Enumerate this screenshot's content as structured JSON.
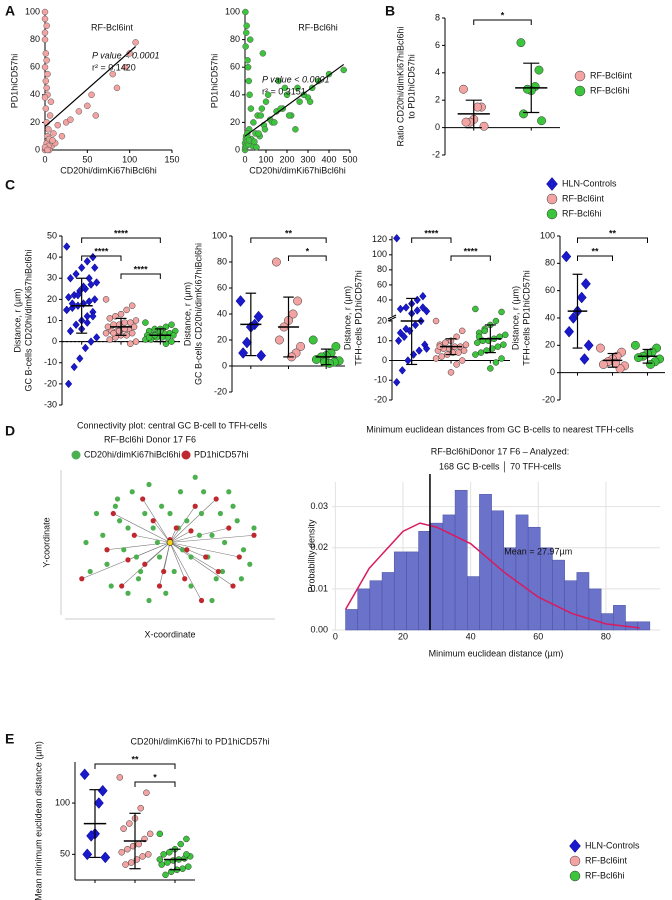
{
  "panels": [
    "A",
    "B",
    "C",
    "D",
    "E"
  ],
  "chart_data": [
    {
      "type": "scatter",
      "title": "RF-Bcl6int",
      "annotations": [
        "P value < 0.0001",
        "r² = 0.1420"
      ],
      "xlabel": "CD20hi/dimKi67hiBcl6hi",
      "ylabel": "PD1hiCD57hi",
      "xlim": [
        0,
        150
      ],
      "xticks": [
        0,
        50,
        100,
        150
      ],
      "ylim": [
        0,
        100
      ],
      "yticks": [
        0,
        20,
        40,
        60,
        80,
        100
      ],
      "color": "#f4a3a3",
      "x": [
        0,
        1,
        2,
        3,
        0,
        5,
        8,
        2,
        1,
        0,
        4,
        10,
        3,
        6,
        12,
        2,
        0,
        1,
        15,
        7,
        20,
        0,
        3,
        25,
        5,
        2,
        30,
        9,
        1,
        0,
        0,
        2,
        40,
        50,
        55,
        80,
        85,
        95,
        100,
        107,
        60,
        4,
        1,
        0,
        3
      ],
      "y": [
        0,
        2,
        5,
        10,
        100,
        8,
        3,
        20,
        30,
        60,
        15,
        12,
        40,
        25,
        5,
        45,
        80,
        70,
        18,
        35,
        10,
        95,
        55,
        20,
        0,
        65,
        22,
        7,
        50,
        38,
        85,
        90,
        28,
        32,
        40,
        55,
        45,
        60,
        70,
        78,
        25,
        3,
        1,
        2,
        0
      ],
      "fit": {
        "x": [
          0,
          107
        ],
        "y": [
          17,
          75
        ]
      }
    },
    {
      "type": "scatter",
      "title": "RF-Bcl6hi",
      "annotations": [
        "P value < 0.0001",
        "r² = 0.3151"
      ],
      "xlabel": "CD20hi/dimKi67hiBcl6hi",
      "ylabel": "PD1hiCD57hi",
      "xlim": [
        0,
        500
      ],
      "xticks": [
        0,
        100,
        200,
        300,
        400,
        500
      ],
      "ylim": [
        0,
        100
      ],
      "yticks": [
        0,
        20,
        40,
        60,
        80,
        100
      ],
      "color": "#3cc43c",
      "x": [
        0,
        5,
        10,
        20,
        30,
        40,
        50,
        60,
        70,
        80,
        90,
        100,
        120,
        150,
        200,
        250,
        300,
        470,
        15,
        25,
        35,
        45,
        55,
        65,
        75,
        85,
        95,
        110,
        130,
        160,
        180,
        220,
        260,
        320,
        400,
        8,
        12,
        18,
        22,
        28,
        2,
        3,
        6,
        140,
        170,
        190,
        210,
        240,
        280,
        310,
        350,
        0,
        1,
        4,
        7,
        9,
        11,
        13,
        16,
        19
      ],
      "y": [
        0,
        10,
        5,
        15,
        8,
        20,
        12,
        25,
        10,
        30,
        18,
        35,
        22,
        28,
        40,
        45,
        38,
        58,
        60,
        80,
        3,
        6,
        2,
        12,
        25,
        70,
        15,
        40,
        20,
        50,
        30,
        25,
        35,
        45,
        55,
        90,
        65,
        50,
        40,
        30,
        100,
        75,
        85,
        20,
        30,
        45,
        25,
        15,
        40,
        35,
        50,
        5,
        2,
        8,
        3,
        6,
        12,
        9,
        4,
        7
      ],
      "fit": {
        "x": [
          0,
          470
        ],
        "y": [
          10,
          62
        ]
      }
    },
    {
      "type": "dot",
      "ylabel": [
        "Ratio CD20hi/dimKi67hiBcl6hi",
        "to PD1hiCD57hi"
      ],
      "ylim": [
        -2,
        8
      ],
      "yticks": [
        -2,
        0,
        2,
        4,
        6,
        8
      ],
      "legend": true,
      "zero_line": false,
      "series": [
        {
          "name": "RF-Bcl6int",
          "color": "#f4a3a3",
          "marker": "circle",
          "values": [
            2.8,
            1.5,
            1.5,
            0.6,
            0.4,
            0.4,
            0.1
          ],
          "mean": 1.0,
          "sd": 1.0
        },
        {
          "name": "RF-Bcl6hi",
          "color": "#3cc43c",
          "marker": "circle",
          "values": [
            6.2,
            4.2,
            3.0,
            2.7,
            2.8,
            1.0,
            0.5
          ],
          "mean": 2.9,
          "sd": 1.8
        }
      ],
      "brackets": [
        {
          "from": 0,
          "to": 1,
          "label": "*"
        }
      ]
    },
    {
      "type": "dot",
      "ylabel": [
        "Distance, r (µm)",
        "GC B-cells CD20hi/dimKi67hiBcl6hi"
      ],
      "ylim": [
        -30,
        50
      ],
      "yticks": [
        -30,
        -20,
        -10,
        0,
        10,
        20,
        30,
        40,
        50
      ],
      "legend": true,
      "zero_line": true,
      "series": [
        {
          "name": "HLN-Controls",
          "color": "#1a1acc",
          "marker": "diamond",
          "values": [
            45,
            40,
            38,
            35,
            32,
            30,
            28,
            27,
            25,
            24,
            22,
            21,
            20,
            19,
            18,
            17,
            16,
            15,
            14,
            12,
            10,
            8,
            5,
            2,
            0,
            -3,
            -8,
            -12,
            -20,
            35,
            30,
            26,
            22,
            18,
            15,
            12,
            9,
            6
          ],
          "mean": 17,
          "sd": 13
        },
        {
          "name": "RF-Bcl6int",
          "color": "#f4a3a3",
          "marker": "circle",
          "values": [
            20,
            17,
            15,
            13,
            12,
            11,
            10,
            9,
            9,
            8,
            8,
            7,
            7,
            6,
            6,
            5,
            5,
            4,
            4,
            3,
            3,
            2,
            1,
            0,
            -1,
            6,
            5,
            4
          ],
          "mean": 7,
          "sd": 4
        },
        {
          "name": "RF-Bcl6hi",
          "color": "#3cc43c",
          "marker": "circle",
          "values": [
            9,
            8,
            7,
            6,
            6,
            5,
            5,
            4,
            4,
            4,
            3,
            3,
            3,
            2,
            2,
            2,
            1,
            1,
            0,
            -1,
            5,
            3,
            2
          ],
          "mean": 3,
          "sd": 3
        }
      ],
      "brackets": [
        {
          "from": 0,
          "to": 2,
          "label": "****"
        },
        {
          "from": 0,
          "to": 1,
          "label": "****"
        },
        {
          "from": 1,
          "to": 2,
          "label": "****"
        }
      ]
    },
    {
      "type": "dot",
      "ylabel": [
        "Distance, r (µm)",
        "GC B-cells CD20hi/dimKi67hiBcl6hi"
      ],
      "ylim": [
        -20,
        100
      ],
      "yticks": [
        -20,
        0,
        20,
        40,
        60,
        80,
        100
      ],
      "legend": false,
      "zero_line": false,
      "series": [
        {
          "color": "#1a1acc",
          "marker": "diamond",
          "values": [
            50,
            38,
            32,
            30,
            18,
            10,
            8
          ],
          "mean": 32,
          "sd": 24
        },
        {
          "color": "#f4a3a3",
          "marker": "circle",
          "values": [
            80,
            50,
            40,
            35,
            30,
            20,
            15,
            10,
            7
          ],
          "mean": 30,
          "sd": 23
        },
        {
          "color": "#3cc43c",
          "marker": "circle",
          "values": [
            20,
            15,
            10,
            8,
            7,
            5,
            4,
            3,
            2,
            3
          ],
          "mean": 7,
          "sd": 6
        }
      ],
      "brackets": [
        {
          "from": 0,
          "to": 2,
          "label": "**"
        },
        {
          "from": 1,
          "to": 2,
          "label": "*"
        }
      ]
    },
    {
      "type": "dot",
      "ylabel": [
        "Distance, r (µm)",
        "TFH-cells PD1hiCD57hi"
      ],
      "ylim": [
        -20,
        125
      ],
      "ybreak": 20,
      "yticks": [
        -20,
        -10,
        0,
        10,
        20,
        40,
        60,
        80,
        100,
        120
      ],
      "legend": false,
      "zero_line": true,
      "series": [
        {
          "color": "#1a1acc",
          "marker": "diamond",
          "values": [
            122,
            45,
            40,
            35,
            30,
            28,
            25,
            20,
            18,
            15,
            12,
            10,
            8,
            5,
            3,
            0,
            -5,
            -11,
            30,
            26,
            22,
            16,
            14,
            6
          ],
          "mean": 20,
          "sd": 22
        },
        {
          "color": "#f4a3a3",
          "marker": "circle",
          "values": [
            20,
            15,
            12,
            10,
            9,
            8,
            8,
            7,
            7,
            6,
            6,
            5,
            5,
            4,
            4,
            3,
            2,
            1,
            0,
            -2,
            -6,
            9,
            7
          ],
          "mean": 7,
          "sd": 4
        },
        {
          "color": "#3cc43c",
          "marker": "circle",
          "values": [
            28,
            24,
            20,
            18,
            16,
            14,
            13,
            12,
            11,
            10,
            10,
            9,
            8,
            7,
            6,
            5,
            4,
            3,
            1,
            -1,
            -4,
            15,
            12
          ],
          "mean": 11,
          "sd": 7
        }
      ],
      "brackets": [
        {
          "from": 0,
          "to": 1,
          "label": "****"
        },
        {
          "from": 1,
          "to": 2,
          "label": "****"
        }
      ]
    },
    {
      "type": "dot",
      "ylabel": [
        "Distance, r (µm)",
        "TFH-cells PD1hiCD57hi"
      ],
      "ylim": [
        -20,
        100
      ],
      "yticks": [
        -20,
        0,
        20,
        40,
        60,
        80,
        100
      ],
      "legend": false,
      "zero_line": false,
      "series": [
        {
          "color": "#1a1acc",
          "marker": "diamond",
          "values": [
            85,
            65,
            55,
            45,
            40,
            30,
            20,
            10
          ],
          "mean": 45,
          "sd": 27
        },
        {
          "color": "#f4a3a3",
          "marker": "circle",
          "values": [
            18,
            15,
            12,
            10,
            8,
            6,
            5,
            3,
            7
          ],
          "mean": 9,
          "sd": 5
        },
        {
          "color": "#3cc43c",
          "marker": "circle",
          "values": [
            20,
            18,
            15,
            14,
            12,
            11,
            10,
            8,
            6
          ],
          "mean": 12,
          "sd": 5
        }
      ],
      "brackets": [
        {
          "from": 0,
          "to": 2,
          "label": "**"
        },
        {
          "from": 0,
          "to": 1,
          "label": "**"
        }
      ]
    },
    {
      "type": "network",
      "title": "Connectivity plot: central GC B-cell to TFH-cells",
      "subtitle": "RF-Bcl6hi    Donor 17 F6",
      "xlabel": "X-coordinate",
      "ylabel": "Y-coordinate",
      "xlim": [
        0,
        100
      ],
      "ylim": [
        0,
        100
      ],
      "center": {
        "x": 50,
        "y": 50,
        "color": "#f2d21b"
      },
      "series": [
        {
          "name": "CD20hi/dimKi67hiBcl6hi",
          "color": "#4caf50",
          "x": [
            10,
            15,
            20,
            25,
            30,
            35,
            40,
            45,
            55,
            60,
            65,
            70,
            75,
            80,
            85,
            90,
            12,
            18,
            28,
            38,
            48,
            58,
            68,
            78,
            88,
            22,
            32,
            42,
            52,
            62,
            72,
            82,
            26,
            36,
            46,
            56,
            66,
            76,
            30,
            40,
            50,
            60,
            70,
            44,
            54,
            64,
            34,
            24,
            74,
            84
          ],
          "y": [
            50,
            70,
            35,
            80,
            60,
            25,
            90,
            40,
            85,
            20,
            70,
            55,
            30,
            75,
            45,
            60,
            30,
            55,
            45,
            70,
            15,
            65,
            40,
            85,
            35,
            20,
            85,
            60,
            30,
            95,
            25,
            65,
            65,
            30,
            75,
            45,
            85,
            50,
            15,
            10,
            70,
            40,
            10,
            50,
            60,
            55,
            40,
            75,
            70,
            25
          ]
        },
        {
          "name": "PD1hiCD57hi",
          "color": "#c0282f",
          "x": [
            8,
            20,
            27,
            33,
            38,
            42,
            47,
            53,
            57,
            62,
            67,
            73,
            78,
            83,
            90,
            23,
            37,
            58,
            72,
            45,
            65,
            30,
            80,
            50,
            60
          ],
          "y": [
            25,
            45,
            20,
            55,
            35,
            65,
            30,
            60,
            25,
            75,
            40,
            30,
            60,
            40,
            55,
            70,
            80,
            45,
            80,
            20,
            10,
            38,
            20,
            52,
            58
          ]
        }
      ]
    },
    {
      "type": "histogram",
      "title": "Minimum euclidean distances from GC B-cells to nearest TFH-cells",
      "subtitle": [
        "RF-Bcl6hiDonor 17 F6  – Analyzed:",
        "168 GC B-cells │ 70 TFH-cells"
      ],
      "xlabel": "Minimum euclidean distance (µm)",
      "ylabel": "Probability density",
      "grid": true,
      "color": "#6b72c9",
      "xlim": [
        -1,
        96
      ],
      "xticks": [
        0,
        20,
        40,
        60,
        80
      ],
      "ylim": [
        0,
        0.036
      ],
      "yticks": [
        {
          "value": 0,
          "label": "0.00"
        },
        0.01,
        0.02,
        0.03
      ],
      "bins": [
        3,
        6.6,
        10.2,
        13.8,
        17.4,
        21,
        24.6,
        28.2,
        31.8,
        35.4,
        39,
        42.6,
        46.2,
        49.8,
        53.4,
        57,
        60.6,
        64.2,
        67.8,
        71.4,
        75,
        78.6,
        82.2,
        85.8,
        89.4,
        93
      ],
      "counts": [
        0.005,
        0.01,
        0.012,
        0.014,
        0.019,
        0.019,
        0.024,
        0.026,
        0.028,
        0.034,
        0.013,
        0.033,
        0.029,
        0.02,
        0.028,
        0.025,
        0.02,
        0.017,
        0.012,
        0.014,
        0.01,
        0.004,
        0.006,
        0.002,
        0.002
      ],
      "curve": {
        "color": "#d81b60",
        "x": [
          3,
          10,
          20,
          25,
          30,
          40,
          50,
          60,
          70,
          80,
          90
        ],
        "y": [
          0.005,
          0.015,
          0.024,
          0.026,
          0.025,
          0.021,
          0.014,
          0.008,
          0.004,
          0.0015,
          0.0005
        ]
      },
      "mean_line": 27.97,
      "annotation": "Mean = 27.97µm"
    },
    {
      "type": "dot",
      "title": "CD20hi/dimKi67hi to PD1hiCD57hi",
      "ylabel": [
        "Mean minimum euclidean distance (µm)"
      ],
      "ylim": [
        25,
        140
      ],
      "yticks": [
        50,
        100
      ],
      "legend": true,
      "zero_line": false,
      "series": [
        {
          "name": "HLN-Controls",
          "color": "#1a1acc",
          "marker": "diamond",
          "values": [
            128,
            112,
            100,
            70,
            68,
            50,
            47
          ],
          "mean": 80,
          "sd": 33
        },
        {
          "name": "RF-Bcl6int",
          "color": "#f4a3a3",
          "marker": "circle",
          "values": [
            125,
            110,
            95,
            85,
            80,
            75,
            70,
            65,
            60,
            58,
            55,
            52,
            50,
            48,
            45,
            42,
            40
          ],
          "mean": 63,
          "sd": 27
        },
        {
          "name": "RF-Bcl6hi",
          "color": "#3cc43c",
          "marker": "circle",
          "values": [
            70,
            65,
            60,
            55,
            52,
            50,
            48,
            46,
            45,
            44,
            42,
            40,
            38,
            36,
            35,
            33,
            30,
            45,
            50
          ],
          "mean": 45,
          "sd": 10
        }
      ],
      "brackets": [
        {
          "from": 0,
          "to": 2,
          "label": "**"
        },
        {
          "from": 1,
          "to": 2,
          "label": "*"
        }
      ]
    }
  ]
}
